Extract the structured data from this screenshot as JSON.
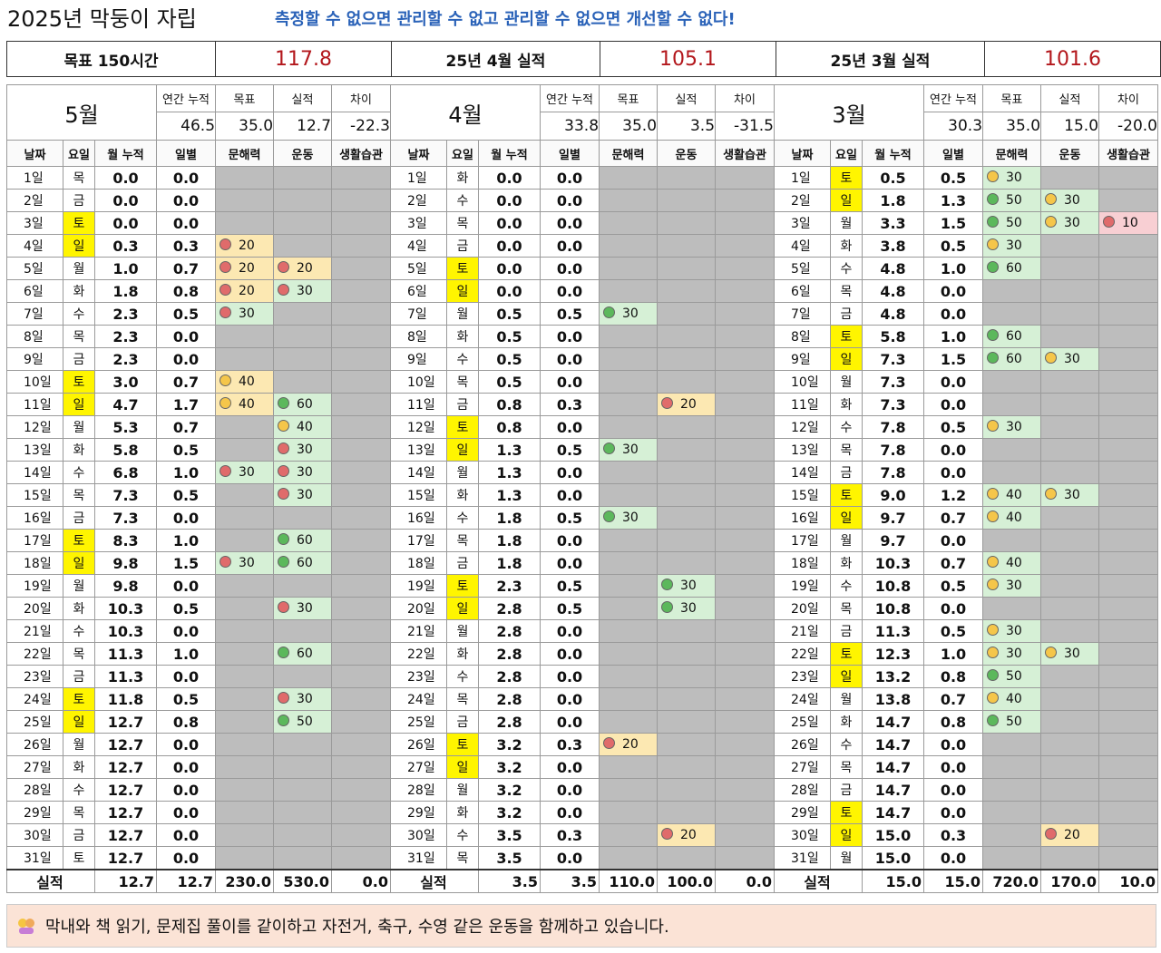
{
  "header": {
    "title": "2025년 막둥이 자립",
    "slogan": "측정할 수 없으면 관리할 수 없고 관리할 수 없으면 개선할 수 없다!"
  },
  "summary": [
    [
      "목표 150시간",
      "117.8"
    ],
    [
      "25년 4월 실적",
      "105.1"
    ],
    [
      "25년 3월 실적",
      "101.6"
    ]
  ],
  "stat_labels": [
    "연간 누적",
    "목표",
    "실적",
    "차이"
  ],
  "columns": [
    "날짜",
    "요일",
    "월 누적",
    "일별",
    "문해력",
    "운동",
    "생활습관"
  ],
  "months": [
    {
      "name": "5월",
      "stats": [
        "46.5",
        "35.0",
        "12.7",
        "-22.3"
      ],
      "highlighted_rows": [
        2,
        3,
        9,
        10,
        16,
        17,
        23,
        24
      ],
      "rows": [
        [
          "1일",
          "목",
          "0.0",
          "0.0",
          null,
          null,
          null
        ],
        [
          "2일",
          "금",
          "0.0",
          "0.0",
          null,
          null,
          null
        ],
        [
          "3일",
          "토",
          "0.0",
          "0.0",
          null,
          null,
          null
        ],
        [
          "4일",
          "일",
          "0.3",
          "0.3",
          [
            "20",
            "red",
            "yellow"
          ],
          null,
          null
        ],
        [
          "5일",
          "월",
          "1.0",
          "0.7",
          [
            "20",
            "red",
            "yellow"
          ],
          [
            "20",
            "red",
            "yellow"
          ],
          null
        ],
        [
          "6일",
          "화",
          "1.8",
          "0.8",
          [
            "20",
            "red",
            "yellow"
          ],
          [
            "30",
            "red",
            "green"
          ],
          null
        ],
        [
          "7일",
          "수",
          "2.3",
          "0.5",
          [
            "30",
            "red",
            "green"
          ],
          null,
          null
        ],
        [
          "8일",
          "목",
          "2.3",
          "0.0",
          null,
          null,
          null
        ],
        [
          "9일",
          "금",
          "2.3",
          "0.0",
          null,
          null,
          null
        ],
        [
          "10일",
          "토",
          "3.0",
          "0.7",
          [
            "40",
            "yellow",
            "yellow"
          ],
          null,
          null
        ],
        [
          "11일",
          "일",
          "4.7",
          "1.7",
          [
            "40",
            "yellow",
            "yellow"
          ],
          [
            "60",
            "green",
            "green"
          ],
          null
        ],
        [
          "12일",
          "월",
          "5.3",
          "0.7",
          null,
          [
            "40",
            "yellow",
            "green"
          ],
          null
        ],
        [
          "13일",
          "화",
          "5.8",
          "0.5",
          null,
          [
            "30",
            "red",
            "green"
          ],
          null
        ],
        [
          "14일",
          "수",
          "6.8",
          "1.0",
          [
            "30",
            "red",
            "green"
          ],
          [
            "30",
            "red",
            "green"
          ],
          null
        ],
        [
          "15일",
          "목",
          "7.3",
          "0.5",
          null,
          [
            "30",
            "red",
            "green"
          ],
          null
        ],
        [
          "16일",
          "금",
          "7.3",
          "0.0",
          null,
          null,
          null
        ],
        [
          "17일",
          "토",
          "8.3",
          "1.0",
          null,
          [
            "60",
            "green",
            "green"
          ],
          null
        ],
        [
          "18일",
          "일",
          "9.8",
          "1.5",
          [
            "30",
            "red",
            "green"
          ],
          [
            "60",
            "green",
            "green"
          ],
          null
        ],
        [
          "19일",
          "월",
          "9.8",
          "0.0",
          null,
          null,
          null
        ],
        [
          "20일",
          "화",
          "10.3",
          "0.5",
          null,
          [
            "30",
            "red",
            "green"
          ],
          null
        ],
        [
          "21일",
          "수",
          "10.3",
          "0.0",
          null,
          null,
          null
        ],
        [
          "22일",
          "목",
          "11.3",
          "1.0",
          null,
          [
            "60",
            "green",
            "green"
          ],
          null
        ],
        [
          "23일",
          "금",
          "11.3",
          "0.0",
          null,
          null,
          null
        ],
        [
          "24일",
          "토",
          "11.8",
          "0.5",
          null,
          [
            "30",
            "red",
            "green"
          ],
          null
        ],
        [
          "25일",
          "일",
          "12.7",
          "0.8",
          null,
          [
            "50",
            "green",
            "green"
          ],
          null
        ],
        [
          "26일",
          "월",
          "12.7",
          "0.0",
          null,
          null,
          null
        ],
        [
          "27일",
          "화",
          "12.7",
          "0.0",
          null,
          null,
          null
        ],
        [
          "28일",
          "수",
          "12.7",
          "0.0",
          null,
          null,
          null
        ],
        [
          "29일",
          "목",
          "12.7",
          "0.0",
          null,
          null,
          null
        ],
        [
          "30일",
          "금",
          "12.7",
          "0.0",
          null,
          null,
          null
        ],
        [
          "31일",
          "토",
          "12.7",
          "0.0",
          null,
          null,
          null
        ]
      ],
      "total_label": "실적",
      "totals": [
        "12.7",
        "12.7",
        "230.0",
        "530.0",
        "0.0"
      ]
    },
    {
      "name": "4월",
      "stats": [
        "33.8",
        "35.0",
        "3.5",
        "-31.5"
      ],
      "highlighted_rows": [
        4,
        5,
        11,
        12,
        18,
        19,
        25,
        26
      ],
      "rows": [
        [
          "1일",
          "화",
          "0.0",
          "0.0",
          null,
          null,
          null
        ],
        [
          "2일",
          "수",
          "0.0",
          "0.0",
          null,
          null,
          null
        ],
        [
          "3일",
          "목",
          "0.0",
          "0.0",
          null,
          null,
          null
        ],
        [
          "4일",
          "금",
          "0.0",
          "0.0",
          null,
          null,
          null
        ],
        [
          "5일",
          "토",
          "0.0",
          "0.0",
          null,
          null,
          null
        ],
        [
          "6일",
          "일",
          "0.0",
          "0.0",
          null,
          null,
          null
        ],
        [
          "7일",
          "월",
          "0.5",
          "0.5",
          [
            "30",
            "green",
            "green"
          ],
          null,
          null
        ],
        [
          "8일",
          "화",
          "0.5",
          "0.0",
          null,
          null,
          null
        ],
        [
          "9일",
          "수",
          "0.5",
          "0.0",
          null,
          null,
          null
        ],
        [
          "10일",
          "목",
          "0.5",
          "0.0",
          null,
          null,
          null
        ],
        [
          "11일",
          "금",
          "0.8",
          "0.3",
          null,
          [
            "20",
            "red",
            "yellow"
          ],
          null
        ],
        [
          "12일",
          "토",
          "0.8",
          "0.0",
          null,
          null,
          null
        ],
        [
          "13일",
          "일",
          "1.3",
          "0.5",
          [
            "30",
            "green",
            "green"
          ],
          null,
          null
        ],
        [
          "14일",
          "월",
          "1.3",
          "0.0",
          null,
          null,
          null
        ],
        [
          "15일",
          "화",
          "1.3",
          "0.0",
          null,
          null,
          null
        ],
        [
          "16일",
          "수",
          "1.8",
          "0.5",
          [
            "30",
            "green",
            "green"
          ],
          null,
          null
        ],
        [
          "17일",
          "목",
          "1.8",
          "0.0",
          null,
          null,
          null
        ],
        [
          "18일",
          "금",
          "1.8",
          "0.0",
          null,
          null,
          null
        ],
        [
          "19일",
          "토",
          "2.3",
          "0.5",
          null,
          [
            "30",
            "green",
            "green"
          ],
          null
        ],
        [
          "20일",
          "일",
          "2.8",
          "0.5",
          null,
          [
            "30",
            "green",
            "green"
          ],
          null
        ],
        [
          "21일",
          "월",
          "2.8",
          "0.0",
          null,
          null,
          null
        ],
        [
          "22일",
          "화",
          "2.8",
          "0.0",
          null,
          null,
          null
        ],
        [
          "23일",
          "수",
          "2.8",
          "0.0",
          null,
          null,
          null
        ],
        [
          "24일",
          "목",
          "2.8",
          "0.0",
          null,
          null,
          null
        ],
        [
          "25일",
          "금",
          "2.8",
          "0.0",
          null,
          null,
          null
        ],
        [
          "26일",
          "토",
          "3.2",
          "0.3",
          [
            "20",
            "red",
            "yellow"
          ],
          null,
          null
        ],
        [
          "27일",
          "일",
          "3.2",
          "0.0",
          null,
          null,
          null
        ],
        [
          "28일",
          "월",
          "3.2",
          "0.0",
          null,
          null,
          null
        ],
        [
          "29일",
          "화",
          "3.2",
          "0.0",
          null,
          null,
          null
        ],
        [
          "30일",
          "수",
          "3.5",
          "0.3",
          null,
          [
            "20",
            "red",
            "yellow"
          ],
          null
        ],
        [
          "31일",
          "목",
          "3.5",
          "0.0",
          null,
          null,
          null
        ]
      ],
      "total_label": "실적",
      "totals": [
        "3.5",
        "3.5",
        "110.0",
        "100.0",
        "0.0"
      ]
    },
    {
      "name": "3월",
      "stats": [
        "30.3",
        "35.0",
        "15.0",
        "-20.0"
      ],
      "highlighted_rows": [
        0,
        1,
        7,
        8,
        14,
        15,
        21,
        22,
        28,
        29
      ],
      "rows": [
        [
          "1일",
          "토",
          "0.5",
          "0.5",
          [
            "30",
            "yellow",
            "green"
          ],
          null,
          null
        ],
        [
          "2일",
          "일",
          "1.8",
          "1.3",
          [
            "50",
            "green",
            "green"
          ],
          [
            "30",
            "yellow",
            "green"
          ],
          null
        ],
        [
          "3일",
          "월",
          "3.3",
          "1.5",
          [
            "50",
            "green",
            "green"
          ],
          [
            "30",
            "yellow",
            "green"
          ],
          [
            "10",
            "red",
            "pink"
          ]
        ],
        [
          "4일",
          "화",
          "3.8",
          "0.5",
          [
            "30",
            "yellow",
            "green"
          ],
          null,
          null
        ],
        [
          "5일",
          "수",
          "4.8",
          "1.0",
          [
            "60",
            "green",
            "green"
          ],
          null,
          null
        ],
        [
          "6일",
          "목",
          "4.8",
          "0.0",
          null,
          null,
          null
        ],
        [
          "7일",
          "금",
          "4.8",
          "0.0",
          null,
          null,
          null
        ],
        [
          "8일",
          "토",
          "5.8",
          "1.0",
          [
            "60",
            "green",
            "green"
          ],
          null,
          null
        ],
        [
          "9일",
          "일",
          "7.3",
          "1.5",
          [
            "60",
            "green",
            "green"
          ],
          [
            "30",
            "yellow",
            "green"
          ],
          null
        ],
        [
          "10일",
          "월",
          "7.3",
          "0.0",
          null,
          null,
          null
        ],
        [
          "11일",
          "화",
          "7.3",
          "0.0",
          null,
          null,
          null
        ],
        [
          "12일",
          "수",
          "7.8",
          "0.5",
          [
            "30",
            "yellow",
            "green"
          ],
          null,
          null
        ],
        [
          "13일",
          "목",
          "7.8",
          "0.0",
          null,
          null,
          null
        ],
        [
          "14일",
          "금",
          "7.8",
          "0.0",
          null,
          null,
          null
        ],
        [
          "15일",
          "토",
          "9.0",
          "1.2",
          [
            "40",
            "yellow",
            "green"
          ],
          [
            "30",
            "yellow",
            "green"
          ],
          null
        ],
        [
          "16일",
          "일",
          "9.7",
          "0.7",
          [
            "40",
            "yellow",
            "green"
          ],
          null,
          null
        ],
        [
          "17일",
          "월",
          "9.7",
          "0.0",
          null,
          null,
          null
        ],
        [
          "18일",
          "화",
          "10.3",
          "0.7",
          [
            "40",
            "yellow",
            "green"
          ],
          null,
          null
        ],
        [
          "19일",
          "수",
          "10.8",
          "0.5",
          [
            "30",
            "yellow",
            "green"
          ],
          null,
          null
        ],
        [
          "20일",
          "목",
          "10.8",
          "0.0",
          null,
          null,
          null
        ],
        [
          "21일",
          "금",
          "11.3",
          "0.5",
          [
            "30",
            "yellow",
            "green"
          ],
          null,
          null
        ],
        [
          "22일",
          "토",
          "12.3",
          "1.0",
          [
            "30",
            "yellow",
            "green"
          ],
          [
            "30",
            "yellow",
            "green"
          ],
          null
        ],
        [
          "23일",
          "일",
          "13.2",
          "0.8",
          [
            "50",
            "green",
            "green"
          ],
          null,
          null
        ],
        [
          "24일",
          "월",
          "13.8",
          "0.7",
          [
            "40",
            "yellow",
            "green"
          ],
          null,
          null
        ],
        [
          "25일",
          "화",
          "14.7",
          "0.8",
          [
            "50",
            "green",
            "green"
          ],
          null,
          null
        ],
        [
          "26일",
          "수",
          "14.7",
          "0.0",
          null,
          null,
          null
        ],
        [
          "27일",
          "목",
          "14.7",
          "0.0",
          null,
          null,
          null
        ],
        [
          "28일",
          "금",
          "14.7",
          "0.0",
          null,
          null,
          null
        ],
        [
          "29일",
          "토",
          "14.7",
          "0.0",
          null,
          null,
          null
        ],
        [
          "30일",
          "일",
          "15.0",
          "0.3",
          null,
          [
            "20",
            "red",
            "yellow"
          ],
          null
        ],
        [
          "31일",
          "월",
          "15.0",
          "0.0",
          null,
          null,
          null
        ]
      ],
      "total_label": "실적",
      "totals": [
        "15.0",
        "15.0",
        "720.0",
        "170.0",
        "10.0"
      ]
    }
  ],
  "footer": "막내와 책 읽기, 문제집 풀이를 같이하고 자전거, 축구, 수영 같은 운동을 함께하고 있습니다."
}
